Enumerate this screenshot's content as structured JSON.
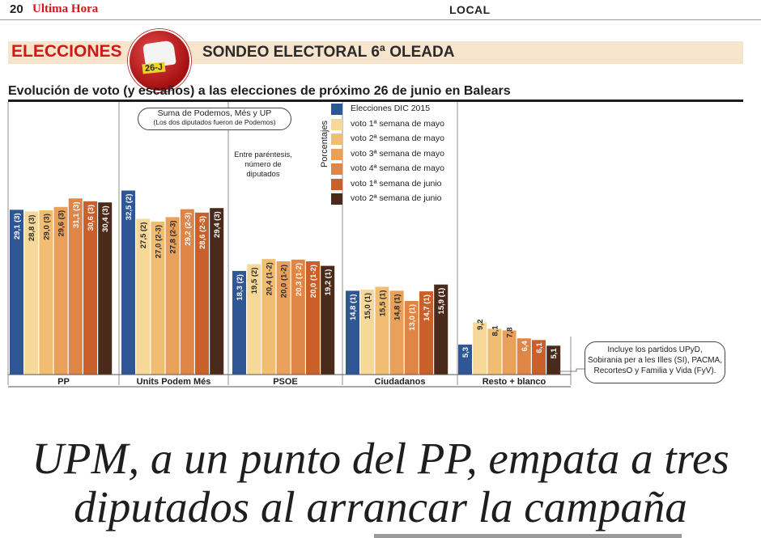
{
  "header": {
    "page_number": "20",
    "newspaper": "Ultima Hora",
    "section": "LOCAL"
  },
  "banner": {
    "label": "ELECCIONES",
    "logo_text": "26-J",
    "title": "SONDEO ELECTORAL 6ª OLEADA"
  },
  "chart_title": "Evolución de voto (y escaños) a las elecciones de próximo 26 de junio en Balears",
  "annotations": {
    "callout_upm_line1": "Suma de Podemos, Més y UP",
    "callout_upm_line2": "(Los dos diputados fueron de Podemos)",
    "note_line1": "Entre paréntesis,",
    "note_line2": "número de",
    "note_line3": "diputados",
    "callout_resto_line1": "Incluye los partidos UPyD,",
    "callout_resto_line2": "Sobirania per a les Illes (SI), PACMA,",
    "callout_resto_line3": "RecortesO y Familia y Vida (FyV)."
  },
  "chart_data": {
    "type": "bar",
    "title": "Evolución de voto (y escaños) a las elecciones de próximo 26 de junio en Balears",
    "ylabel": "Porcentajes",
    "ylim": [
      0,
      35
    ],
    "categories": [
      "PP",
      "Units Podem Més",
      "PSOE",
      "Ciudadanos",
      "Resto + blanco"
    ],
    "series": [
      {
        "name": "Elecciones DIC 2015",
        "color": "#2f5796",
        "values": [
          29.1,
          32.5,
          18.3,
          14.8,
          5.3
        ],
        "labels": [
          "29,1 (3)",
          "32,5 (2)",
          "18,3 (2)",
          "14,8 (1)",
          "5,3"
        ]
      },
      {
        "name": "voto 1ª semana de mayo",
        "color": "#f6d898",
        "values": [
          28.8,
          27.5,
          19.5,
          15.0,
          9.2
        ],
        "labels": [
          "28,8 (3)",
          "27,5 (2)",
          "19,5 (2)",
          "15,0 (1)",
          "9,2"
        ]
      },
      {
        "name": "voto 2ª semana de mayo",
        "color": "#f0bd72",
        "values": [
          29.0,
          27.0,
          20.4,
          15.5,
          8.1
        ],
        "labels": [
          "29,0 (3)",
          "27,0 (2-3)",
          "20,4 (1-2)",
          "15,5 (1)",
          "8,1"
        ]
      },
      {
        "name": "voto 3ª semana de mayo",
        "color": "#e9a05a",
        "values": [
          29.6,
          27.8,
          20.0,
          14.8,
          7.8
        ],
        "labels": [
          "29,6 (3)",
          "27,8 (2-3)",
          "20,0 (1-2)",
          "14,8 (1)",
          "7,8"
        ]
      },
      {
        "name": "voto 4ª semana de mayo",
        "color": "#df8545",
        "values": [
          31.1,
          29.2,
          20.3,
          13.0,
          6.4
        ],
        "labels": [
          "31,1 (3)",
          "29,2 (2-3)",
          "20,3 (1-2)",
          "13,0 (1)",
          "6,4"
        ]
      },
      {
        "name": "voto 1ª semana de junio",
        "color": "#c9602b",
        "values": [
          30.6,
          28.6,
          20.0,
          14.7,
          6.1
        ],
        "labels": [
          "30,6 (3)",
          "28,6 (2-3)",
          "20,0 (1-2)",
          "14,7 (1)",
          "6,1"
        ]
      },
      {
        "name": "voto 2ª semana de junio",
        "color": "#4a2a1a",
        "values": [
          30.4,
          29.4,
          19.2,
          15.9,
          5.1
        ],
        "labels": [
          "30,4 (3)",
          "29,4 (3)",
          "19,2 (1)",
          "15,9 (1)",
          "5,1"
        ]
      }
    ]
  },
  "headline": {
    "line1": "UPM, a un punto del PP, empata a tres",
    "line2": "diputados al arrancar la campaña"
  }
}
